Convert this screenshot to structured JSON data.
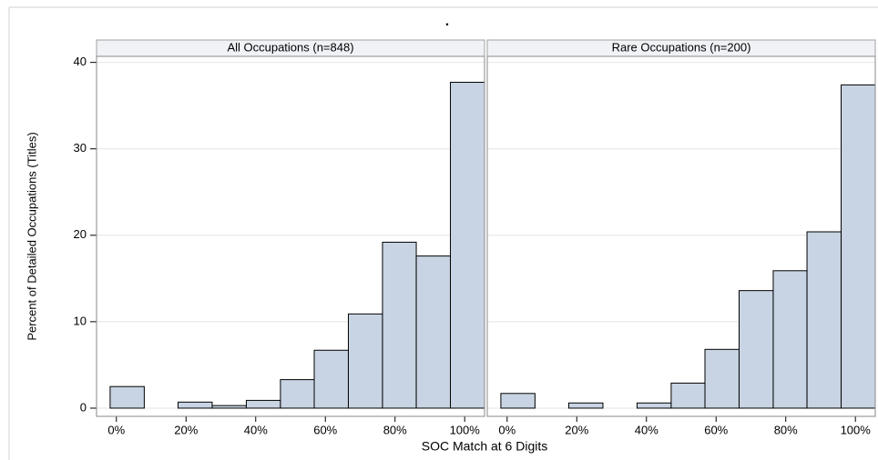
{
  "chart_data": {
    "type": "histogram",
    "title": ".",
    "xlabel": "SOC Match at 6 Digits",
    "ylabel": "Percent of Detailed Occupations (Titles)",
    "color": "#c8d4e3",
    "grid": true,
    "xlim": [
      -5.7,
      105.7
    ],
    "ylim": [
      -0.95,
      40.7
    ],
    "xticks": [
      {
        "value": 0,
        "label": "0%"
      },
      {
        "value": 20,
        "label": "20%"
      },
      {
        "value": 40,
        "label": "40%"
      },
      {
        "value": 60,
        "label": "60%"
      },
      {
        "value": 80,
        "label": "80%"
      },
      {
        "value": 100,
        "label": "100%"
      }
    ],
    "yticks": [
      0,
      10,
      20,
      30,
      40
    ],
    "bins": [
      -1.8,
      8.0,
      17.7,
      27.5,
      37.3,
      47.1,
      56.8,
      66.6,
      76.4,
      86.1,
      95.9,
      105.7
    ],
    "panels": [
      {
        "title": "All Occupations (n=848)",
        "values": [
          2.5,
          0,
          0.7,
          0.3,
          0.9,
          3.3,
          6.7,
          10.9,
          19.2,
          17.6,
          37.7
        ]
      },
      {
        "title": "Rare Occupations (n=200)",
        "values": [
          1.7,
          0,
          0.6,
          0,
          0.6,
          2.9,
          6.8,
          13.6,
          15.9,
          20.4,
          37.4
        ]
      }
    ]
  }
}
